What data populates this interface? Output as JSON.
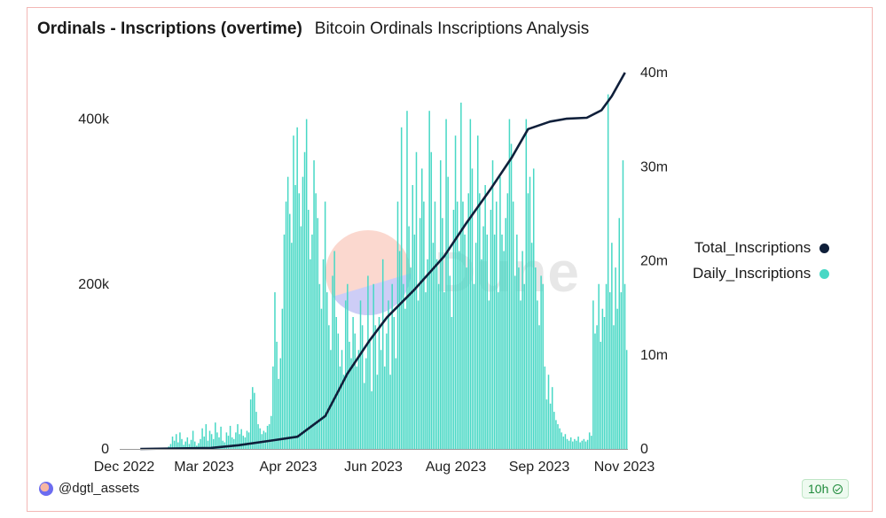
{
  "header": {
    "title": "Ordinals - Inscriptions (overtime)",
    "subtitle": "Bitcoin Ordinals Inscriptions Analysis"
  },
  "legend": {
    "total_label": "Total_Inscriptions",
    "daily_label": "Daily_Inscriptions",
    "total_color": "#0f1f3a",
    "daily_color": "#48d8c5"
  },
  "watermark": {
    "text": "Dune"
  },
  "footer": {
    "author": "@dgtl_assets",
    "refresh": "10h"
  },
  "chart_data": {
    "type": "bar+line",
    "x_ticks": [
      "Dec 2022",
      "Mar 2023",
      "Apr 2023",
      "Jun 2023",
      "Aug 2023",
      "Sep 2023",
      "Nov 2023"
    ],
    "y_left_ticks": [
      "0",
      "200k",
      "400k"
    ],
    "y_right_ticks": [
      "0",
      "10m",
      "20m",
      "30m",
      "40m"
    ],
    "y_left_range": [
      0,
      480000
    ],
    "y_right_range": [
      0,
      40000000
    ],
    "grid": false,
    "legend_position": "right",
    "series": [
      {
        "name": "Daily_Inscriptions",
        "kind": "bar",
        "axis": "left",
        "values": [
          0,
          0,
          0,
          0,
          0,
          0,
          0,
          0,
          0,
          0,
          0,
          0,
          0,
          0,
          0,
          0,
          0,
          0,
          0,
          0,
          0,
          0,
          0,
          0,
          0,
          0,
          3000,
          6000,
          15000,
          10000,
          18000,
          8000,
          20000,
          12000,
          5000,
          9000,
          14000,
          6000,
          11000,
          22000,
          9000,
          4000,
          7000,
          12000,
          25000,
          15000,
          30000,
          10000,
          22000,
          18000,
          12000,
          32000,
          20000,
          14000,
          27000,
          10000,
          8000,
          20000,
          16000,
          28000,
          14000,
          12000,
          20000,
          30000,
          18000,
          24000,
          16000,
          14000,
          22000,
          20000,
          60000,
          75000,
          68000,
          45000,
          30000,
          25000,
          18000,
          22000,
          20000,
          28000,
          30000,
          40000,
          100000,
          190000,
          130000,
          85000,
          110000,
          170000,
          260000,
          300000,
          330000,
          285000,
          250000,
          380000,
          320000,
          390000,
          310000,
          270000,
          330000,
          360000,
          400000,
          290000,
          230000,
          260000,
          350000,
          310000,
          280000,
          200000,
          170000,
          230000,
          300000,
          190000,
          150000,
          120000,
          210000,
          240000,
          160000,
          140000,
          100000,
          120000,
          90000,
          180000,
          200000,
          130000,
          110000,
          160000,
          140000,
          100000,
          120000,
          180000,
          150000,
          80000,
          110000,
          210000,
          130000,
          70000,
          200000,
          150000,
          90000,
          160000,
          120000,
          230000,
          100000,
          140000,
          180000,
          90000,
          200000,
          160000,
          110000,
          300000,
          240000,
          390000,
          200000,
          170000,
          410000,
          270000,
          220000,
          320000,
          260000,
          360000,
          180000,
          280000,
          340000,
          300000,
          190000,
          230000,
          410000,
          360000,
          250000,
          300000,
          230000,
          200000,
          350000,
          280000,
          190000,
          400000,
          330000,
          210000,
          160000,
          290000,
          380000,
          300000,
          240000,
          420000,
          300000,
          260000,
          220000,
          310000,
          400000,
          340000,
          200000,
          250000,
          380000,
          310000,
          230000,
          270000,
          320000,
          260000,
          180000,
          290000,
          350000,
          260000,
          300000,
          190000,
          330000,
          260000,
          240000,
          280000,
          310000,
          400000,
          370000,
          300000,
          210000,
          260000,
          220000,
          180000,
          240000,
          200000,
          400000,
          310000,
          330000,
          250000,
          340000,
          220000,
          180000,
          150000,
          210000,
          200000,
          100000,
          60000,
          90000,
          55000,
          75000,
          45000,
          35000,
          30000,
          25000,
          20000,
          15000,
          18000,
          12000,
          10000,
          14000,
          9000,
          12000,
          10000,
          15000,
          8000,
          10000,
          12000,
          9000,
          11000,
          20000,
          16000,
          180000,
          140000,
          150000,
          200000,
          130000,
          170000,
          160000,
          200000,
          430000,
          190000,
          250000,
          150000,
          220000,
          170000,
          280000,
          190000,
          350000,
          200000,
          120000
        ]
      },
      {
        "name": "Total_Inscriptions",
        "kind": "line",
        "axis": "right",
        "x": [
          "2022-12-15",
          "2023-02-01",
          "2023-02-20",
          "2023-03-15",
          "2023-04-01",
          "2023-04-20",
          "2023-05-05",
          "2023-05-20",
          "2023-06-01",
          "2023-06-20",
          "2023-07-10",
          "2023-07-25",
          "2023-08-10",
          "2023-08-25",
          "2023-09-05",
          "2023-09-20",
          "2023-10-01",
          "2023-10-15",
          "2023-10-25",
          "2023-11-01",
          "2023-11-10"
        ],
        "values": [
          0,
          0.1,
          0.4,
          0.9,
          1.3,
          3.5,
          8.0,
          11.5,
          14.0,
          17.0,
          20.5,
          24.0,
          27.5,
          31.0,
          34.0,
          34.8,
          35.1,
          35.2,
          36.0,
          37.5,
          40.0
        ],
        "unit": "m"
      }
    ]
  }
}
